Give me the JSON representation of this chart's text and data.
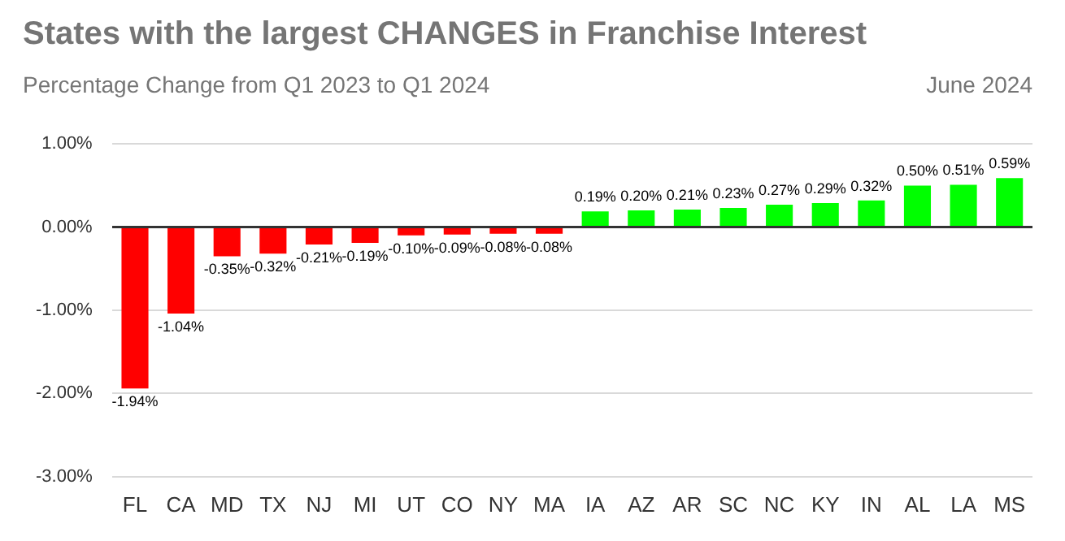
{
  "chart_data": {
    "type": "bar",
    "title": "States with the largest CHANGES in Franchise Interest",
    "subtitle": "Percentage Change from Q1 2023 to Q1 2024",
    "annotations": [
      "June 2024"
    ],
    "categories": [
      "FL",
      "CA",
      "MD",
      "TX",
      "NJ",
      "MI",
      "UT",
      "CO",
      "NY",
      "MA",
      "IA",
      "AZ",
      "AR",
      "SC",
      "NC",
      "KY",
      "IN",
      "AL",
      "LA",
      "MS"
    ],
    "values": [
      -1.94,
      -1.04,
      -0.35,
      -0.32,
      -0.21,
      -0.19,
      -0.1,
      -0.09,
      -0.08,
      -0.08,
      0.19,
      0.2,
      0.21,
      0.23,
      0.27,
      0.29,
      0.32,
      0.5,
      0.51,
      0.59
    ],
    "value_labels": [
      "-1.94%",
      "-1.04%",
      "-0.35%",
      "-0.32%",
      "-0.21%",
      "-0.19%",
      "-0.10%",
      "-0.09%",
      "-0.08%",
      "-0.08%",
      "0.19%",
      "0.20%",
      "0.21%",
      "0.23%",
      "0.27%",
      "0.29%",
      "0.32%",
      "0.50%",
      "0.51%",
      "0.59%"
    ],
    "colors": [
      "#ff0000",
      "#ff0000",
      "#ff0000",
      "#ff0000",
      "#ff0000",
      "#ff0000",
      "#ff0000",
      "#ff0000",
      "#ff0000",
      "#ff0000",
      "#00ff00",
      "#00ff00",
      "#00ff00",
      "#00ff00",
      "#00ff00",
      "#00ff00",
      "#00ff00",
      "#00ff00",
      "#00ff00",
      "#00ff00"
    ],
    "ylim": [
      -3,
      1
    ],
    "yticks": [
      {
        "value": -3,
        "label": "-3.00%"
      },
      {
        "value": -2,
        "label": "-2.00%"
      },
      {
        "value": -1,
        "label": "-1.00%"
      },
      {
        "value": 0,
        "label": "0.00%"
      },
      {
        "value": 1,
        "label": "1.00%"
      }
    ],
    "grid": "y",
    "legend": false
  }
}
